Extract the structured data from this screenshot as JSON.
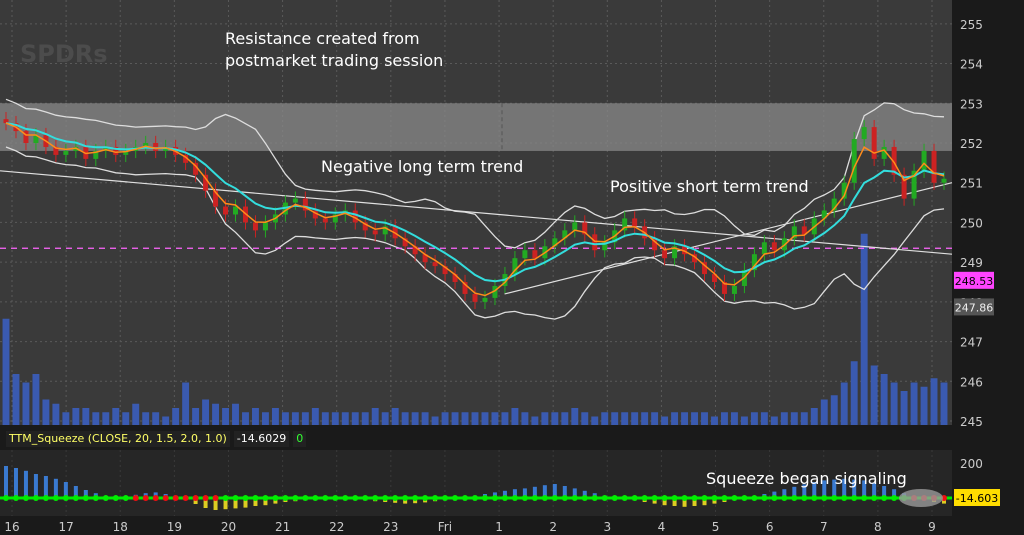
{
  "watermark": "SPDRs",
  "annotations": {
    "resistance_line1": "Resistance created from",
    "resistance_line2": "postmarket trading session",
    "negative_trend": "Negative long term trend",
    "positive_trend": "Positive short term trend",
    "squeeze_signal": "Squeeze began signaling"
  },
  "study_header": {
    "name": "TTM_Squeeze (CLOSE, 20, 1.5, 2.0, 1.0)",
    "value": "-14.6029",
    "count": "0"
  },
  "price_badges": {
    "current": "248.53",
    "reference": "247.86",
    "squeeze_value": "-14.603"
  },
  "colors": {
    "background": "#3a3a3a",
    "grid": "#5a5a5a",
    "up_candle": "#22aa22",
    "down_candle": "#cc2222",
    "ema_fast": "#ff8c1a",
    "ema_slow": "#33dddd",
    "bollinger": "#dddddd",
    "dashed_level": "#ff66ff",
    "volume": "#3a5ab0",
    "squeeze_on": "#00ee00",
    "squeeze_off": "#ee1111",
    "hist_pos": "#3a7ad0",
    "hist_neg": "#ddcc22"
  },
  "chart_data": [
    {
      "type": "candlestick",
      "y_ticks": [
        245,
        246,
        247,
        248,
        249,
        250,
        251,
        252,
        253,
        254,
        255
      ],
      "ylim": [
        244.9,
        255.6
      ],
      "x_ticks": [
        "16",
        "17",
        "18",
        "19",
        "20",
        "21",
        "22",
        "23",
        "Fri",
        "1",
        "2",
        "3",
        "4",
        "5",
        "6",
        "7",
        "8",
        "9"
      ],
      "resistance_zone": [
        251.8,
        253.0
      ],
      "dashed_level": 249.35,
      "trend_lines": [
        {
          "name": "negative",
          "from": [
            0,
            251.3
          ],
          "to": [
            1.0,
            249.2
          ]
        },
        {
          "name": "positive",
          "from": [
            0.53,
            248.2
          ],
          "to": [
            1.0,
            251.0
          ]
        }
      ],
      "closes": [
        252.5,
        252.3,
        252.0,
        252.2,
        251.9,
        251.7,
        251.8,
        251.9,
        251.6,
        251.8,
        251.9,
        251.7,
        251.8,
        251.9,
        252.0,
        251.8,
        251.9,
        251.7,
        251.5,
        251.2,
        250.8,
        250.4,
        250.2,
        250.4,
        250.0,
        249.8,
        250.0,
        250.2,
        250.5,
        250.6,
        250.3,
        250.1,
        250.0,
        250.2,
        250.3,
        250.0,
        249.8,
        249.7,
        249.9,
        249.6,
        249.4,
        249.2,
        249.0,
        248.9,
        248.7,
        248.5,
        248.2,
        248.0,
        248.1,
        248.4,
        248.7,
        249.1,
        249.3,
        249.1,
        249.4,
        249.6,
        249.8,
        250.0,
        249.7,
        249.3,
        249.5,
        249.8,
        250.1,
        249.9,
        249.6,
        249.3,
        249.1,
        249.4,
        249.2,
        249.0,
        248.7,
        248.5,
        248.2,
        248.4,
        248.8,
        249.2,
        249.5,
        249.3,
        249.6,
        249.9,
        249.7,
        250.1,
        250.3,
        250.6,
        251.0,
        252.1,
        252.4,
        251.6,
        251.9,
        251.2,
        250.6,
        251.3,
        251.8,
        251.0,
        251.1
      ],
      "volume_profile": [
        0.25,
        0.12,
        0.1,
        0.12,
        0.06,
        0.05,
        0.03,
        0.04,
        0.04,
        0.03,
        0.03,
        0.04,
        0.03,
        0.05,
        0.03,
        0.03,
        0.02,
        0.04,
        0.1,
        0.04,
        0.06,
        0.05,
        0.04,
        0.05,
        0.03,
        0.04,
        0.03,
        0.04,
        0.03,
        0.03,
        0.03,
        0.04,
        0.03,
        0.03,
        0.03,
        0.03,
        0.03,
        0.04,
        0.03,
        0.04,
        0.03,
        0.03,
        0.03,
        0.02,
        0.03,
        0.03,
        0.03,
        0.03,
        0.03,
        0.03,
        0.03,
        0.04,
        0.03,
        0.02,
        0.03,
        0.03,
        0.03,
        0.04,
        0.03,
        0.02,
        0.03,
        0.03,
        0.03,
        0.03,
        0.03,
        0.03,
        0.02,
        0.03,
        0.03,
        0.03,
        0.03,
        0.02,
        0.03,
        0.03,
        0.02,
        0.03,
        0.03,
        0.02,
        0.03,
        0.03,
        0.03,
        0.04,
        0.06,
        0.07,
        0.1,
        0.15,
        0.45,
        0.14,
        0.12,
        0.1,
        0.08,
        0.1,
        0.09,
        0.11,
        0.1
      ]
    },
    {
      "type": "histogram",
      "name": "TTM_Squeeze",
      "y_ticks": [
        200
      ],
      "squeeze_value": -14.603,
      "momentum": [
        80,
        75,
        68,
        60,
        55,
        48,
        40,
        30,
        20,
        12,
        5,
        2,
        4,
        8,
        12,
        14,
        10,
        6,
        0,
        -15,
        -25,
        -30,
        -28,
        -26,
        -24,
        -20,
        -18,
        -14,
        -10,
        -8,
        -6,
        -5,
        -4,
        -3,
        -3,
        -4,
        -6,
        -8,
        -10,
        -12,
        -14,
        -13,
        -11,
        -8,
        -6,
        -3,
        2,
        6,
        10,
        14,
        18,
        22,
        24,
        28,
        32,
        35,
        30,
        24,
        18,
        12,
        6,
        2,
        -2,
        -6,
        -10,
        -14,
        -18,
        -20,
        -22,
        -20,
        -18,
        -14,
        -10,
        -6,
        -2,
        4,
        10,
        16,
        22,
        28,
        34,
        40,
        44,
        46,
        48,
        46,
        44,
        38,
        30,
        22,
        12,
        4,
        -6,
        -10,
        -14
      ],
      "squeeze_states": [
        0,
        0,
        0,
        0,
        0,
        0,
        0,
        0,
        0,
        0,
        0,
        0,
        0,
        1,
        1,
        1,
        1,
        1,
        1,
        1,
        1,
        1,
        0,
        0,
        0,
        0,
        0,
        0,
        0,
        0,
        0,
        0,
        0,
        0,
        0,
        0,
        0,
        0,
        0,
        0,
        0,
        0,
        0,
        0,
        0,
        0,
        0,
        0,
        0,
        0,
        0,
        0,
        0,
        0,
        0,
        0,
        0,
        0,
        0,
        0,
        0,
        0,
        0,
        0,
        0,
        0,
        0,
        0,
        0,
        0,
        0,
        0,
        0,
        0,
        0,
        0,
        0,
        0,
        0,
        0,
        0,
        0,
        0,
        0,
        0,
        0,
        0,
        0,
        0,
        0,
        0,
        1,
        1,
        1,
        1
      ]
    }
  ]
}
